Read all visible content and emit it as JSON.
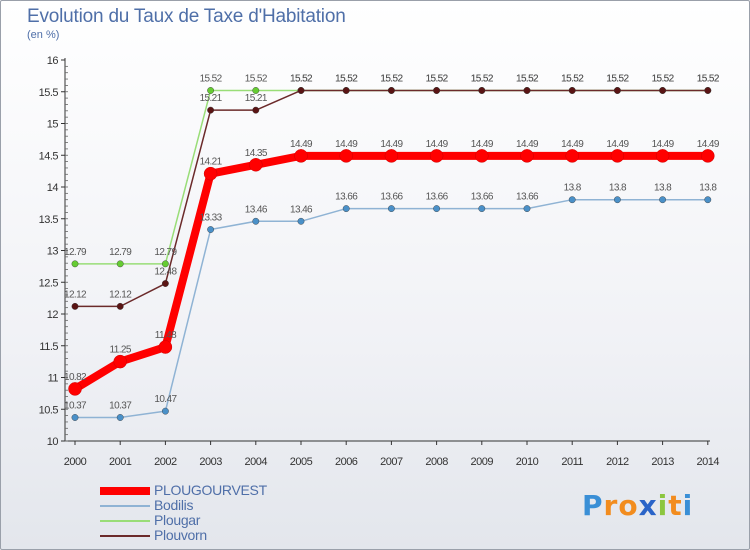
{
  "chart_data": {
    "type": "line",
    "title": "Evolution du Taux de Taxe d'Habitation",
    "unit_label": "(en %)",
    "ylim": [
      10,
      16
    ],
    "y_ticks": [
      "10",
      "10.5",
      "11",
      "11.5",
      "12",
      "12.5",
      "13",
      "13.5",
      "14",
      "14.5",
      "15",
      "15.5",
      "16"
    ],
    "categories": [
      "2000",
      "2001",
      "2002",
      "2003",
      "2004",
      "2005",
      "2006",
      "2007",
      "2008",
      "2009",
      "2010",
      "2011",
      "2012",
      "2013",
      "2014"
    ],
    "grid": false,
    "legend_position": "bottom-left",
    "series": [
      {
        "name": "Bodilis",
        "color": "#4a90c8",
        "line_color": "#8fb3d4",
        "values": [
          10.37,
          10.37,
          10.47,
          13.33,
          13.46,
          13.46,
          13.66,
          13.66,
          13.66,
          13.66,
          13.66,
          13.8,
          13.8,
          13.8,
          13.8
        ],
        "labels": [
          "10.37",
          "10.37",
          "10.47",
          "13.33",
          "13.46",
          "13.46",
          "13.66",
          "13.66",
          "13.66",
          "13.66",
          "13.66",
          "13.8",
          "13.8",
          "13.8",
          "13.8"
        ]
      },
      {
        "name": "Plougar",
        "color": "#66cc33",
        "line_color": "#99dd77",
        "values": [
          12.79,
          12.79,
          12.79,
          15.52,
          15.52,
          15.52,
          15.52,
          15.52,
          15.52,
          15.52,
          15.52,
          15.52,
          15.52,
          15.52,
          15.52
        ],
        "labels": [
          "12.79",
          "12.79",
          "12.79",
          "15.52",
          "15.52",
          "15.52",
          "15.52",
          "15.52",
          "15.52",
          "15.52",
          "15.52",
          "15.52",
          "15.52",
          "15.52",
          "15.52"
        ]
      },
      {
        "name": "Plouvorn",
        "color": "#5a1414",
        "line_color": "#6b2a2a",
        "values": [
          12.12,
          12.12,
          12.48,
          15.21,
          15.21,
          15.52,
          15.52,
          15.52,
          15.52,
          15.52,
          15.52,
          15.52,
          15.52,
          15.52,
          15.52
        ],
        "labels": [
          "12.12",
          "12.12",
          "12.48",
          "15.21",
          "15.21",
          "15.52",
          "15.52",
          "15.52",
          "15.52",
          "15.52",
          "15.52",
          "15.52",
          "15.52",
          "15.52",
          "15.52"
        ]
      },
      {
        "name": "PLOUGOURVEST",
        "color": "#ff0000",
        "line_color": "#ff0000",
        "values": [
          10.82,
          11.25,
          11.48,
          14.21,
          14.35,
          14.49,
          14.49,
          14.49,
          14.49,
          14.49,
          14.49,
          14.49,
          14.49,
          14.49,
          14.49
        ],
        "labels": [
          "10.82",
          "11.25",
          "11.48",
          "14.21",
          "14.35",
          "14.49",
          "14.49",
          "14.49",
          "14.49",
          "14.49",
          "14.49",
          "14.49",
          "14.49",
          "14.49",
          "14.49"
        ]
      }
    ],
    "legend": [
      {
        "name": "PLOUGOURVEST",
        "color": "#ff0000"
      },
      {
        "name": "Bodilis",
        "color": "#8fb3d4"
      },
      {
        "name": "Plougar",
        "color": "#99dd77"
      },
      {
        "name": "Plouvorn",
        "color": "#6b2a2a"
      }
    ]
  },
  "logo": {
    "text": "Proxiti",
    "letters": [
      "P",
      "r",
      "o",
      "x",
      "i",
      "t",
      "i"
    ],
    "colors": [
      "#3a8fd6",
      "#f28c1e",
      "#f28c1e",
      "#2a64c8",
      "#8cc63f",
      "#f28c1e",
      "#3a8fd6"
    ]
  }
}
